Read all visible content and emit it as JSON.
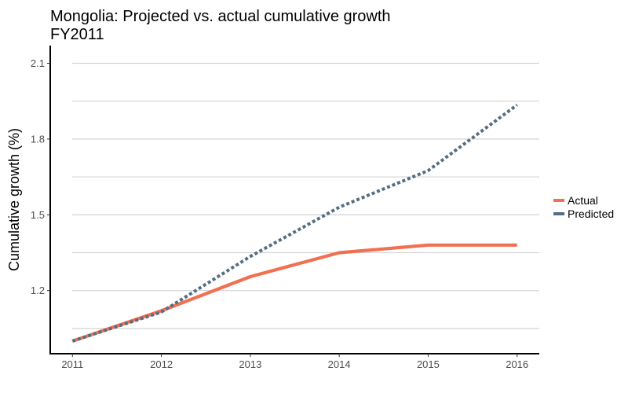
{
  "chart_data": {
    "type": "line",
    "title": "Mongolia: Projected vs. actual cumulative growth",
    "subtitle": "FY2011",
    "xlabel": "",
    "ylabel": "Cumulative growth (%)",
    "x": [
      2011,
      2012,
      2013,
      2014,
      2015,
      2016
    ],
    "xlim": [
      2010.75,
      2016.25
    ],
    "ylim": [
      0.95,
      2.17
    ],
    "y_ticks": [
      1.2,
      1.5,
      1.8,
      2.1
    ],
    "y_tick_labels": [
      "1.2",
      "1.5",
      "1.8",
      "2.1"
    ],
    "y_minor_grid": [
      1.05,
      1.35,
      1.65,
      1.95
    ],
    "x_tick_labels": [
      "2011",
      "2012",
      "2013",
      "2014",
      "2015",
      "2016"
    ],
    "grid": true,
    "legend_position": "right",
    "series": [
      {
        "name": "Actual",
        "values": [
          1.0,
          1.12,
          1.255,
          1.35,
          1.38,
          1.38
        ],
        "color": "#F07050",
        "style": "solid"
      },
      {
        "name": "Predicted",
        "values": [
          1.0,
          1.115,
          1.335,
          1.53,
          1.675,
          1.935
        ],
        "color": "#556E82",
        "style": "dotted"
      }
    ]
  }
}
